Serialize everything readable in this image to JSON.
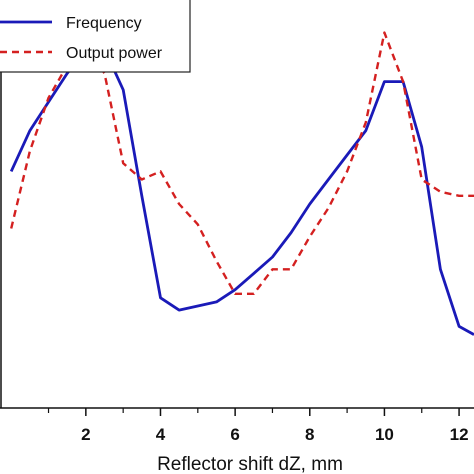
{
  "chart_data": {
    "type": "line",
    "title": "",
    "xlabel": "Reflector shift dZ, mm",
    "ylabel": "",
    "xlim": [
      -0.3,
      12.4
    ],
    "ylim": [
      0,
      1
    ],
    "x_ticks": [
      2,
      4,
      6,
      8,
      10,
      12
    ],
    "x_tick_labels": [
      "2",
      "4",
      "6",
      "8",
      "10",
      "12"
    ],
    "legend_position": "top-left",
    "grid": false,
    "series": [
      {
        "name": "Frequency",
        "color": "#1a1ab8",
        "style": "solid",
        "x": [
          0.0,
          0.5,
          1.0,
          1.5,
          2.0,
          2.5,
          3.0,
          3.5,
          4.0,
          4.5,
          5.0,
          5.5,
          6.0,
          6.5,
          7.0,
          7.5,
          8.0,
          8.5,
          9.0,
          9.5,
          10.0,
          10.5,
          11.0,
          11.5,
          12.0,
          12.4
        ],
        "y": [
          0.58,
          0.68,
          0.75,
          0.82,
          0.88,
          0.88,
          0.78,
          0.52,
          0.27,
          0.24,
          0.25,
          0.26,
          0.29,
          0.33,
          0.37,
          0.43,
          0.5,
          0.56,
          0.62,
          0.68,
          0.8,
          0.8,
          0.64,
          0.34,
          0.2,
          0.18
        ]
      },
      {
        "name": "Output power",
        "color": "#d42020",
        "style": "dashed",
        "x": [
          0.0,
          0.5,
          1.0,
          1.5,
          2.0,
          2.5,
          3.0,
          3.5,
          4.0,
          4.5,
          5.0,
          5.5,
          6.0,
          6.5,
          7.0,
          7.5,
          8.0,
          8.5,
          9.0,
          9.5,
          10.0,
          10.5,
          11.0,
          11.5,
          12.0,
          12.4
        ],
        "y": [
          0.44,
          0.63,
          0.76,
          0.84,
          0.89,
          0.82,
          0.6,
          0.56,
          0.58,
          0.5,
          0.45,
          0.36,
          0.28,
          0.28,
          0.34,
          0.34,
          0.42,
          0.49,
          0.58,
          0.7,
          0.92,
          0.8,
          0.56,
          0.53,
          0.52,
          0.52
        ]
      }
    ]
  }
}
